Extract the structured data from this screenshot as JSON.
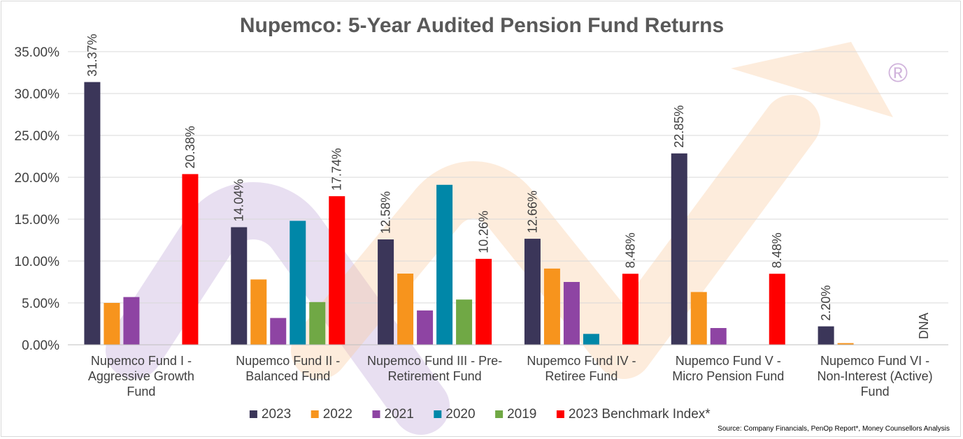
{
  "chart_data": {
    "type": "bar",
    "title": "Nupemco: 5-Year Audited Pension Fund Returns",
    "xlabel": "",
    "ylabel": "",
    "ylim": [
      0,
      35
    ],
    "yticks": [
      0,
      5,
      10,
      15,
      20,
      25,
      30,
      35
    ],
    "ytick_labels": [
      "0.00%",
      "5.00%",
      "10.00%",
      "15.00%",
      "20.00%",
      "25.00%",
      "30.00%",
      "35.00%"
    ],
    "grid": true,
    "categories": [
      [
        "Nupemco Fund I -",
        "Aggressive Growth",
        "Fund"
      ],
      [
        "Nupemco Fund II -",
        "Balanced Fund"
      ],
      [
        "Nupemco Fund III - Pre-",
        "Retirement Fund"
      ],
      [
        "Nupemco Fund IV -",
        "Retiree Fund"
      ],
      [
        "Nupemco Fund V -",
        "Micro Pension Fund"
      ],
      [
        "Nupemco Fund VI -",
        "Non-Interest (Active)",
        "Fund"
      ]
    ],
    "series": [
      {
        "name": "2023",
        "color": "#3b3659",
        "values": [
          31.37,
          14.04,
          12.58,
          12.66,
          22.85,
          2.2
        ],
        "labels": [
          "31.37%",
          "14.04%",
          "12.58%",
          "12.66%",
          "22.85%",
          "2.20%"
        ]
      },
      {
        "name": "2022",
        "color": "#f7941d",
        "values": [
          5.0,
          7.8,
          8.5,
          9.1,
          6.3,
          0.2
        ],
        "labels": []
      },
      {
        "name": "2021",
        "color": "#8e44a3",
        "values": [
          5.7,
          3.2,
          4.1,
          7.5,
          2.0,
          null
        ],
        "labels": []
      },
      {
        "name": "2020",
        "color": "#0087a8",
        "values": [
          null,
          14.8,
          19.1,
          1.3,
          null,
          null
        ],
        "labels": []
      },
      {
        "name": "2019",
        "color": "#70a845",
        "values": [
          null,
          5.1,
          5.4,
          null,
          null,
          null
        ],
        "labels": []
      },
      {
        "name": "2023 Benchmark Index*",
        "color": "#ff0000",
        "values": [
          20.38,
          17.74,
          10.26,
          8.48,
          8.48,
          null
        ],
        "labels": [
          "20.38%",
          "17.74%",
          "10.26%",
          "8.48%",
          "8.48%",
          "DNA"
        ]
      }
    ],
    "legend_position": "bottom",
    "source": "Source: Company Financials, PenOp Report*, Money Counsellors Analysis"
  },
  "watermark": {
    "symbol": "®",
    "arrow_color": "#f9c99a",
    "loop_color": "#cbb8df",
    "symbol_color": "#c9a8d6"
  }
}
